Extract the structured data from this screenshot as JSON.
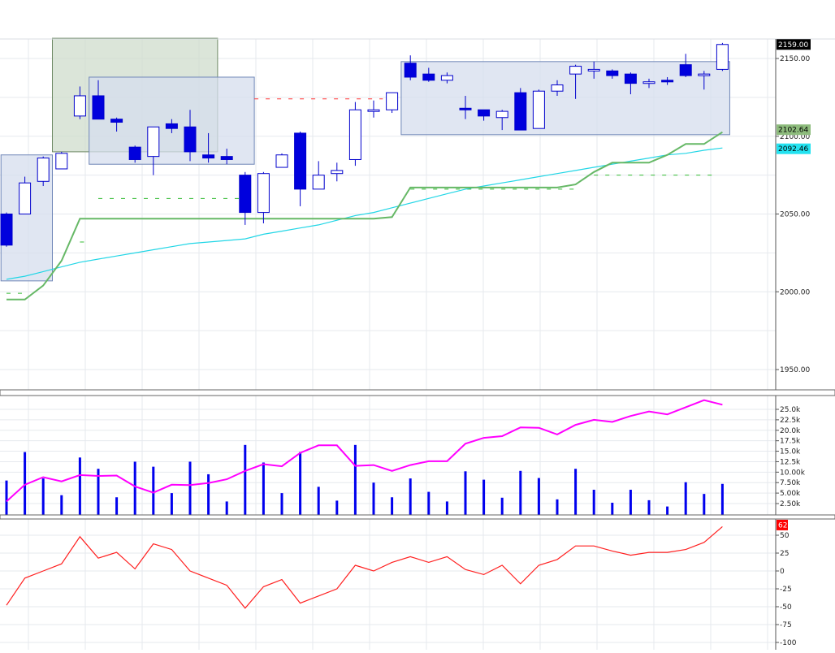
{
  "colors": {
    "up_fill": "#ffffff",
    "down_fill": "#0000dd",
    "candle_stroke": "#0000cc",
    "grid": "#e6e9ee",
    "axis_text": "#222222",
    "ema_line": "#66b866",
    "sma_line": "#22d6e6",
    "volume_bar": "#0000ee",
    "volume_line": "#ff00ff",
    "osc_line": "#ff2020",
    "box_blue_fill": "#d6deee",
    "box_blue_stroke": "#6f86b7",
    "box_green_fill": "#cfdccc",
    "box_green_stroke": "#6e8a65",
    "dash_red": "#ff3333",
    "dash_green": "#33bb33",
    "price_tag_bg": "#000000",
    "ema_tag_bg": "#8ebc7d",
    "sma_tag_bg": "#23e2f0",
    "osc_tag_bg": "#ff0000"
  },
  "chart_data": [
    {
      "type": "candlestick",
      "panel": "price",
      "ylim": [
        1940,
        2170
      ],
      "yticks": [
        "2150.00",
        "2100.00",
        "2050.00",
        "2000.00",
        "1950.00"
      ],
      "ytick_values": [
        2150,
        2100,
        2050,
        2000,
        1950
      ],
      "last_price_label": "2159.00",
      "last_price_value": 2159,
      "ema_label": "2102.64",
      "ema_value": 2102.64,
      "sma_label": "2092.46",
      "sma_value": 2092.46,
      "candles": [
        {
          "o": 2050,
          "h": 2051,
          "c": 2030,
          "l": 2029
        },
        {
          "o": 2050,
          "h": 2074,
          "c": 2070,
          "l": 2050
        },
        {
          "o": 2071,
          "h": 2087,
          "c": 2086,
          "l": 2068
        },
        {
          "o": 2079,
          "h": 2090,
          "c": 2089,
          "l": 2079
        },
        {
          "o": 2113,
          "h": 2132,
          "c": 2126,
          "l": 2111
        },
        {
          "o": 2126,
          "h": 2136,
          "c": 2111,
          "l": 2111
        },
        {
          "o": 2111,
          "h": 2112,
          "c": 2109,
          "l": 2103
        },
        {
          "o": 2093,
          "h": 2094,
          "c": 2085,
          "l": 2083
        },
        {
          "o": 2087,
          "h": 2106,
          "c": 2106,
          "l": 2075
        },
        {
          "o": 2108,
          "h": 2111,
          "c": 2105,
          "l": 2102
        },
        {
          "o": 2106,
          "h": 2117,
          "c": 2090,
          "l": 2084
        },
        {
          "o": 2088,
          "h": 2102,
          "c": 2086,
          "l": 2083
        },
        {
          "o": 2087,
          "h": 2092,
          "c": 2085,
          "l": 2082
        },
        {
          "o": 2075,
          "h": 2077,
          "c": 2051,
          "l": 2043
        },
        {
          "o": 2051,
          "h": 2077,
          "c": 2076,
          "l": 2044
        },
        {
          "o": 2080,
          "h": 2089,
          "c": 2088,
          "l": 2080
        },
        {
          "o": 2102,
          "h": 2103,
          "c": 2066,
          "l": 2055
        },
        {
          "o": 2066,
          "h": 2084,
          "c": 2075,
          "l": 2066
        },
        {
          "o": 2076,
          "h": 2083,
          "c": 2078,
          "l": 2071
        },
        {
          "o": 2085,
          "h": 2122,
          "c": 2117,
          "l": 2081
        },
        {
          "o": 2117,
          "h": 2123,
          "c": 2117,
          "l": 2112
        },
        {
          "o": 2117,
          "h": 2128,
          "c": 2128,
          "l": 2115
        },
        {
          "o": 2147,
          "h": 2152,
          "c": 2138,
          "l": 2136
        },
        {
          "o": 2140,
          "h": 2144,
          "c": 2136,
          "l": 2135
        },
        {
          "o": 2136,
          "h": 2141,
          "c": 2139,
          "l": 2134
        },
        {
          "o": 2118,
          "h": 2126,
          "c": 2117,
          "l": 2111
        },
        {
          "o": 2117,
          "h": 2117,
          "c": 2113,
          "l": 2110
        },
        {
          "o": 2112,
          "h": 2117,
          "c": 2116,
          "l": 2104
        },
        {
          "o": 2128,
          "h": 2131,
          "c": 2104,
          "l": 2104
        },
        {
          "o": 2105,
          "h": 2130,
          "c": 2129,
          "l": 2105
        },
        {
          "o": 2129,
          "h": 2136,
          "c": 2133,
          "l": 2126
        },
        {
          "o": 2140,
          "h": 2146,
          "c": 2145,
          "l": 2124
        },
        {
          "o": 2143,
          "h": 2148,
          "c": 2143,
          "l": 2137
        },
        {
          "o": 2142,
          "h": 2143,
          "c": 2139,
          "l": 2137
        },
        {
          "o": 2140,
          "h": 2141,
          "c": 2134,
          "l": 2127
        },
        {
          "o": 2134,
          "h": 2137,
          "c": 2135,
          "l": 2131
        },
        {
          "o": 2136,
          "h": 2138,
          "c": 2135,
          "l": 2133
        },
        {
          "o": 2146,
          "h": 2153,
          "c": 2139,
          "l": 2138
        },
        {
          "o": 2139,
          "h": 2142,
          "c": 2140,
          "l": 2130
        },
        {
          "o": 2143,
          "h": 2160,
          "c": 2159,
          "l": 2142
        }
      ],
      "ema_series": [
        1995,
        1995,
        2004,
        2020,
        2047,
        2047,
        2047,
        2047,
        2047,
        2047,
        2047,
        2047,
        2047,
        2047,
        2047,
        2047,
        2047,
        2047,
        2047,
        2047,
        2047,
        2048,
        2067,
        2067,
        2067,
        2067,
        2067,
        2067,
        2067,
        2067,
        2067,
        2069,
        2077,
        2083,
        2083,
        2083,
        2088,
        2095,
        2095,
        2102.64
      ],
      "sma_series": [
        2008,
        2010,
        2013,
        2016,
        2019,
        2021,
        2023,
        2025,
        2027,
        2029,
        2031,
        2032,
        2033,
        2034,
        2037,
        2039,
        2041,
        2043,
        2046,
        2049,
        2051,
        2054,
        2057,
        2060,
        2063,
        2066,
        2068,
        2070,
        2072,
        2074,
        2076,
        2078,
        2080,
        2082,
        2084,
        2086,
        2088,
        2089,
        2091,
        2092.46
      ],
      "boxes": [
        {
          "i1": -0.3,
          "i2": 2.5,
          "top": 2088,
          "bottom": 2007,
          "style": "blue"
        },
        {
          "i1": 2.5,
          "i2": 11.5,
          "top": 2163,
          "bottom": 2090,
          "style": "green"
        },
        {
          "i1": 4.5,
          "i2": 13.5,
          "top": 2138,
          "bottom": 2082,
          "style": "blue"
        },
        {
          "i1": 21.5,
          "i2": 39.4,
          "top": 2148,
          "bottom": 2101,
          "style": "blue"
        }
      ],
      "dashes": [
        {
          "i1": 13.5,
          "i2": 20.5,
          "value": 2124,
          "color": "red"
        },
        {
          "i1": 5.0,
          "i2": 13.2,
          "value": 2060,
          "color": "green"
        },
        {
          "i1": 0.0,
          "i2": 1.0,
          "value": 1999,
          "color": "green"
        },
        {
          "i1": 4.0,
          "i2": 4.4,
          "value": 2032,
          "color": "green"
        },
        {
          "i1": 22.0,
          "i2": 31.0,
          "value": 2066,
          "color": "green"
        },
        {
          "i1": 32.0,
          "i2": 38.5,
          "value": 2075,
          "color": "green"
        }
      ]
    },
    {
      "type": "bar",
      "panel": "volume",
      "ylim": [
        0,
        28000
      ],
      "yticks": [
        "25.0k",
        "22.5k",
        "20.0k",
        "17.5k",
        "15.0k",
        "12.5k",
        "10.00k",
        "7.50k",
        "5.00k",
        "2.50k"
      ],
      "ytick_values": [
        25000,
        22500,
        20000,
        17500,
        15000,
        12500,
        10000,
        7500,
        5000,
        2500
      ],
      "values": [
        8000,
        14800,
        8500,
        4500,
        13500,
        10800,
        4000,
        12500,
        11300,
        5000,
        12500,
        9500,
        3000,
        16500,
        12300,
        5000,
        14800,
        6500,
        3200,
        16500,
        7500,
        4000,
        8500,
        5300,
        3000,
        10200,
        8200,
        3900,
        10300,
        8600,
        3500,
        10800,
        5800,
        2700,
        5800,
        3300,
        1800,
        7600,
        4800,
        7200
      ],
      "line": [
        3000,
        7000,
        8800,
        7800,
        9300,
        9100,
        9200,
        6600,
        5100,
        7000,
        6900,
        7400,
        8300,
        10300,
        11900,
        11400,
        14600,
        16400,
        16400,
        11500,
        11700,
        10300,
        11700,
        12600,
        12600,
        16800,
        18200,
        18600,
        20700,
        20600,
        19000,
        21300,
        22500,
        22000,
        23400,
        24500,
        23800,
        25500,
        27200,
        26100
      ]
    },
    {
      "type": "line",
      "panel": "oscillator",
      "ylim": [
        -105,
        62
      ],
      "yticks": [
        "50",
        "25",
        "0",
        "-25",
        "-50",
        "-75",
        "-100"
      ],
      "ytick_values": [
        50,
        25,
        0,
        -25,
        -50,
        -75,
        -100
      ],
      "last_label": "62",
      "last_value": 62,
      "values": [
        -48,
        -10,
        0,
        10,
        48,
        18,
        26,
        3,
        38,
        30,
        0,
        -10,
        -20,
        -52,
        -22,
        -12,
        -45,
        -35,
        -25,
        8,
        0,
        12,
        20,
        12,
        20,
        2,
        -5,
        8,
        -18,
        8,
        16,
        35,
        35,
        28,
        22,
        26,
        26,
        30,
        40,
        62
      ]
    }
  ]
}
